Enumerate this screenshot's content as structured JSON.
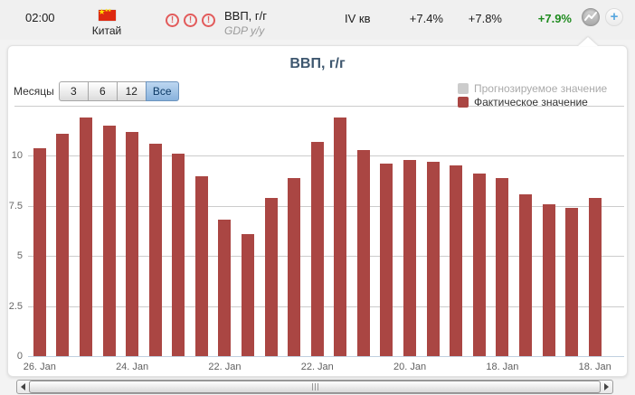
{
  "header": {
    "time": "02:00",
    "country": "Китай",
    "flag_icon": "china-flag-icon",
    "importance": [
      "!",
      "!",
      "!"
    ],
    "event_title": "ВВП, г/г",
    "event_subtitle": "GDP y/y",
    "period": "IV кв",
    "previous": "+7.4%",
    "forecast": "+7.8%",
    "actual": "+7.9%",
    "actual_color": "#1f8b1f"
  },
  "icons": {
    "chart_toggle": "line-chart-icon",
    "add_button": "plus-icon",
    "add_glyph": "+"
  },
  "chart": {
    "title": "ВВП, г/г",
    "months_label": "Месяцы",
    "range_buttons": [
      {
        "label": "3",
        "active": false
      },
      {
        "label": "6",
        "active": false
      },
      {
        "label": "12",
        "active": false
      },
      {
        "label": "Все",
        "active": true
      }
    ],
    "legend": [
      {
        "label": "Прогнозируемое значение",
        "color": "#cccccc",
        "muted": true
      },
      {
        "label": "Фактическое значение",
        "color": "#aa4643",
        "muted": false
      }
    ]
  },
  "chart_data": {
    "type": "bar",
    "title": "ВВП, г/г",
    "series": [
      {
        "name": "Фактическое значение",
        "color": "#aa4643",
        "values": [
          10.4,
          11.1,
          11.9,
          11.5,
          11.2,
          10.6,
          10.1,
          9.0,
          6.8,
          6.1,
          7.9,
          8.9,
          10.7,
          11.9,
          10.3,
          9.6,
          9.8,
          9.7,
          9.5,
          9.1,
          8.9,
          8.1,
          7.6,
          7.4,
          7.9
        ]
      }
    ],
    "x_tick_labels": [
      "26. Jan",
      "24. Jan",
      "22. Jan",
      "22. Jan",
      "20. Jan",
      "18. Jan",
      "18. Jan"
    ],
    "x_tick_indices": [
      0,
      4,
      8,
      12,
      16,
      20,
      24
    ],
    "ylim": [
      0,
      12.5
    ],
    "yticks": [
      "0",
      "2.5",
      "5",
      "7.5",
      "10"
    ],
    "ytick_values": [
      0,
      2.5,
      5,
      7.5,
      10
    ],
    "grid_values": [
      2.5,
      5,
      7.5,
      10,
      12.5
    ],
    "grid": true,
    "legend_position": "top-right"
  }
}
